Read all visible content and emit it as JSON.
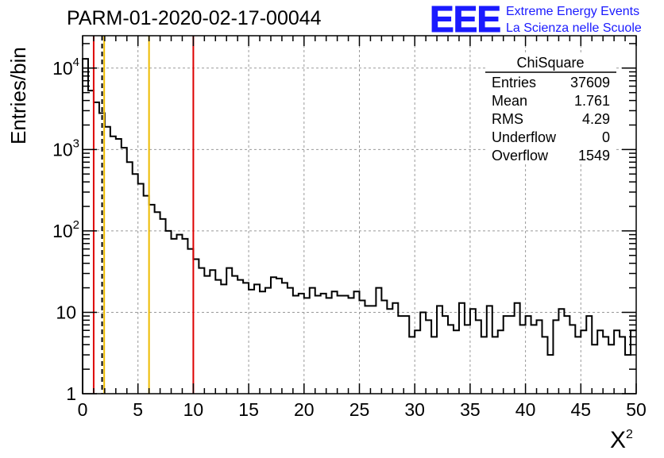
{
  "header": {
    "run_title": "PARM-01-2020-02-17-00044",
    "logo_text": "EEE",
    "logo_line1": "Extreme Energy Events",
    "logo_line2": "La Scienza nelle Scuole",
    "logo_color": "#1a1aff"
  },
  "stats_box": {
    "title": "ChiSquare",
    "rows": [
      {
        "label": "Entries",
        "value": "37609"
      },
      {
        "label": "Mean",
        "value": "1.761"
      },
      {
        "label": "RMS",
        "value": "4.29"
      },
      {
        "label": "Underflow",
        "value": "0"
      },
      {
        "label": "Overflow",
        "value": "1549"
      }
    ]
  },
  "chart_data": {
    "type": "histogram",
    "ylabel": "Entries/bin",
    "xlabel_base": "X",
    "xlabel_sup": "2",
    "xlim": [
      0,
      50
    ],
    "ylim": [
      1,
      25000
    ],
    "yscale": "log",
    "grid": true,
    "bin_width": 0.5,
    "x_ticks": [
      "0",
      "5",
      "10",
      "15",
      "20",
      "25",
      "30",
      "35",
      "40",
      "45",
      "50"
    ],
    "y_ticks": [
      {
        "base": "1",
        "exp": ""
      },
      {
        "base": "10",
        "exp": ""
      },
      {
        "base": "10",
        "exp": "2"
      },
      {
        "base": "10",
        "exp": "3"
      },
      {
        "base": "10",
        "exp": "4"
      }
    ],
    "values": [
      13000,
      5300,
      3800,
      2800,
      1900,
      1450,
      1350,
      1050,
      700,
      500,
      380,
      270,
      210,
      170,
      140,
      100,
      80,
      90,
      80,
      60,
      45,
      35,
      28,
      33,
      25,
      22,
      35,
      28,
      25,
      23,
      19,
      22,
      18,
      20,
      27,
      26,
      23,
      20,
      16,
      17,
      15,
      20,
      16,
      17,
      15,
      18,
      16,
      16,
      15,
      18,
      14,
      12,
      12,
      20,
      14,
      11,
      13,
      9,
      9,
      5,
      6,
      10,
      8,
      5,
      12,
      9,
      7,
      6,
      13,
      7,
      11,
      8,
      5,
      12,
      5,
      6,
      9,
      9,
      13,
      7,
      9,
      7,
      8,
      5,
      3,
      8,
      11,
      9,
      7,
      5,
      6,
      9,
      4,
      6,
      5,
      4,
      6,
      5,
      3,
      6
    ],
    "vertical_lines": [
      {
        "x": 1.0,
        "color": "#dd0000",
        "style": "solid"
      },
      {
        "x": 1.761,
        "color": "#000000",
        "style": "dashed"
      },
      {
        "x": 1.95,
        "color": "#eebb00",
        "style": "solid"
      },
      {
        "x": 6.0,
        "color": "#eebb00",
        "style": "solid"
      },
      {
        "x": 10.0,
        "color": "#dd0000",
        "style": "solid"
      }
    ]
  }
}
